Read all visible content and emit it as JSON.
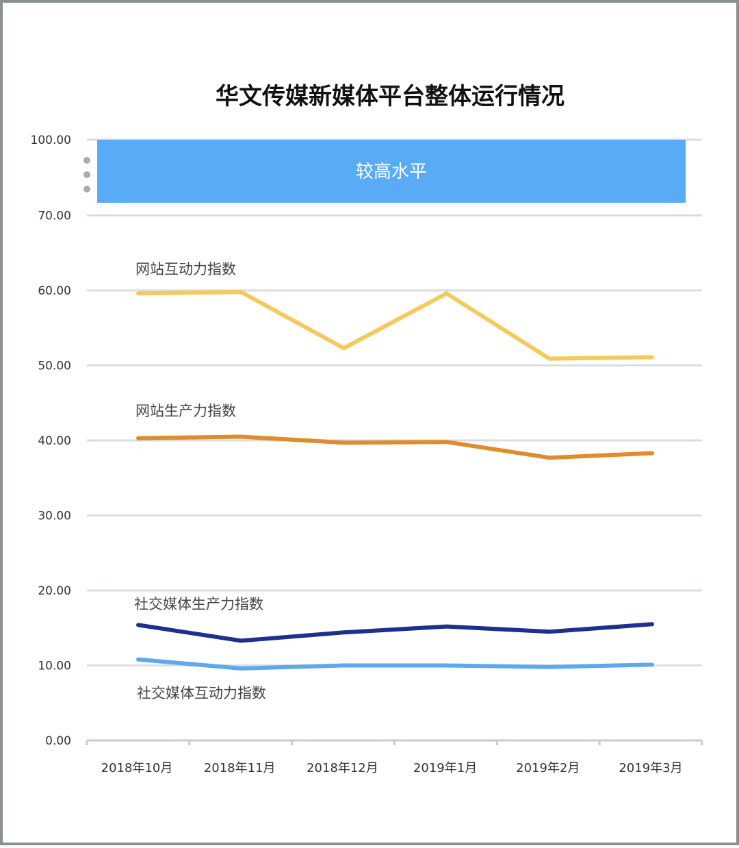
{
  "chart_data": {
    "type": "line",
    "title": "华文传媒新媒体平台整体运行情况",
    "xlabel": "",
    "ylabel": "",
    "categories": [
      "2018年10月",
      "2018年11月",
      "2018年12月",
      "2019年1月",
      "2019年2月",
      "2019年3月"
    ],
    "y_ticks": [
      "0.00",
      "10.00",
      "20.00",
      "30.00",
      "40.00",
      "50.00",
      "60.00",
      "70.00",
      "100.00"
    ],
    "axis_break": {
      "lower_top": 70,
      "upper_top": 100
    },
    "grid": true,
    "high_band": {
      "label": "较高水平",
      "from": 75,
      "to": 100,
      "color": "#5aabf5"
    },
    "series": [
      {
        "name": "网站互动力指数",
        "color": "#f5c95c",
        "values": [
          59.6,
          59.8,
          52.3,
          59.6,
          50.9,
          51.1
        ]
      },
      {
        "name": "网站生产力指数",
        "color": "#df8c2c",
        "values": [
          40.3,
          40.5,
          39.7,
          39.8,
          37.7,
          38.3
        ]
      },
      {
        "name": "社交媒体生产力指数",
        "color": "#1f2f8f",
        "values": [
          15.4,
          13.3,
          14.4,
          15.2,
          14.5,
          15.5
        ]
      },
      {
        "name": "社交媒体互动力指数",
        "color": "#5ea9ec",
        "values": [
          10.8,
          9.6,
          10.0,
          10.0,
          9.8,
          10.1
        ]
      }
    ]
  }
}
